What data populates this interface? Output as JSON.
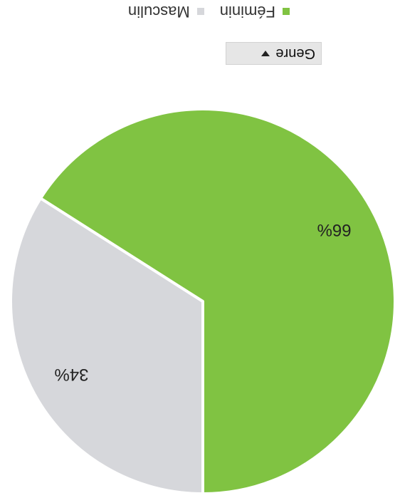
{
  "filter": {
    "label": "Genre"
  },
  "colors": {
    "feminin": "#80c342",
    "masculin": "#d6d7db",
    "separator": "#ffffff"
  },
  "chart_data": {
    "type": "pie",
    "slices": [
      {
        "name": "Masculin",
        "value": 34,
        "label": "34%",
        "color": "#d6d7db"
      },
      {
        "name": "Féminin",
        "value": 66,
        "label": "66%",
        "color": "#80c342"
      }
    ],
    "legend": {
      "placement": "bottom",
      "entries": [
        {
          "name": "Féminin",
          "color": "#80c342"
        },
        {
          "name": "Masculin",
          "color": "#d6d7db"
        }
      ]
    }
  }
}
